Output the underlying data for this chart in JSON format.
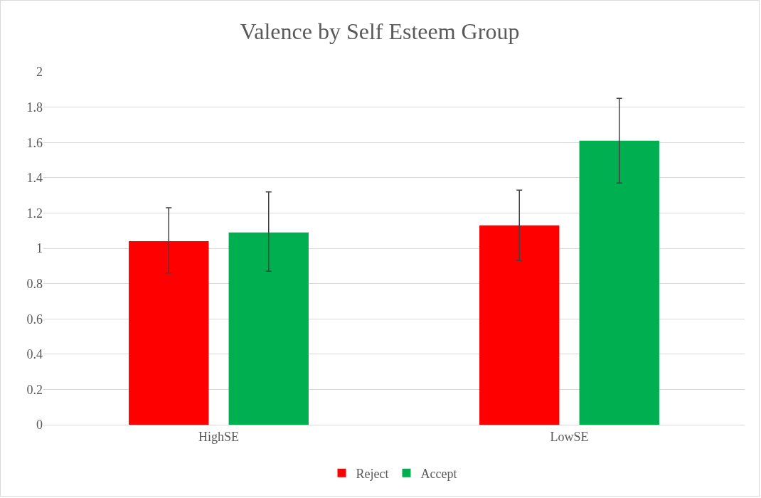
{
  "chart_data": {
    "type": "bar",
    "title": "Valence by Self Esteem Group",
    "categories": [
      "HighSE",
      "LowSE"
    ],
    "series": [
      {
        "name": "Reject",
        "color": "#ff0000",
        "values": [
          1.04,
          1.13
        ],
        "errors": [
          [
            0.86,
            1.23
          ],
          [
            0.93,
            1.33
          ]
        ]
      },
      {
        "name": "Accept",
        "color": "#00b050",
        "values": [
          1.09,
          1.61
        ],
        "errors": [
          [
            0.87,
            1.32
          ],
          [
            1.37,
            1.85
          ]
        ]
      }
    ],
    "ylim": [
      0,
      2
    ],
    "yticks": [
      0,
      0.2,
      0.4,
      0.6,
      0.8,
      1,
      1.2,
      1.4,
      1.6,
      1.8,
      2
    ],
    "grid": "y",
    "legend": "bottom"
  }
}
